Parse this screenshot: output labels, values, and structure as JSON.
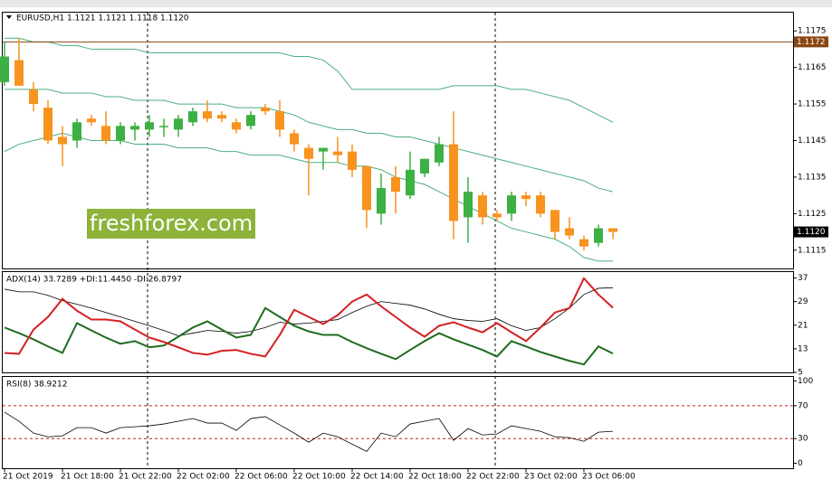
{
  "chart_data": [
    {
      "type": "candlestick",
      "title": "EURUSD,H1  1.1121 1.1121 1.1118 1.1120",
      "watermark": "freshforex.com",
      "categories": [
        "21 Oct 2019",
        null,
        null,
        null,
        "21 Oct 18:00",
        null,
        null,
        null,
        "21 Oct 22:00",
        null,
        null,
        null,
        "22 Oct 02:00",
        null,
        null,
        null,
        "22 Oct 06:00",
        null,
        null,
        null,
        "22 Oct 10:00",
        null,
        null,
        null,
        "22 Oct 14:00",
        null,
        null,
        null,
        "22 Oct 18:00",
        null,
        null,
        null,
        "22 Oct 22:00",
        null,
        null,
        null,
        "23 Oct 02:00",
        null,
        null,
        null,
        "23 Oct 06:00",
        null,
        null
      ],
      "open": [
        1.1161,
        1.1167,
        1.1159,
        1.1154,
        1.1146,
        1.1145,
        1.1151,
        1.1149,
        1.1145,
        1.1148,
        1.1148,
        1.1149,
        1.1148,
        1.115,
        1.1153,
        1.1152,
        1.115,
        1.1149,
        1.1154,
        1.1153,
        1.1147,
        1.1143,
        1.1142,
        1.1142,
        1.1142,
        1.1138,
        1.1125,
        1.1135,
        1.113,
        1.1136,
        1.1139,
        1.1144,
        1.1124,
        1.113,
        1.1125,
        1.1125,
        1.113,
        1.113,
        1.1126,
        1.1121,
        1.1118,
        1.1117,
        1.1121
      ],
      "high": [
        1.1172,
        1.1173,
        1.1161,
        1.1156,
        1.1149,
        1.1151,
        1.1152,
        1.1153,
        1.115,
        1.115,
        1.1152,
        1.1151,
        1.1152,
        1.1154,
        1.1156,
        1.1153,
        1.1151,
        1.1153,
        1.1155,
        1.1156,
        1.1148,
        1.1144,
        1.1143,
        1.1146,
        1.1144,
        1.1138,
        1.1136,
        1.1138,
        1.1142,
        1.114,
        1.1146,
        1.1153,
        1.1135,
        1.1131,
        1.1126,
        1.1131,
        1.1131,
        1.1131,
        1.1126,
        1.1124,
        1.1119,
        1.1122,
        1.1121
      ],
      "low": [
        1.116,
        1.116,
        1.1153,
        1.1144,
        1.1138,
        1.1143,
        1.1149,
        1.1144,
        1.1144,
        1.1145,
        1.1146,
        1.1146,
        1.1146,
        1.1149,
        1.115,
        1.115,
        1.1147,
        1.1148,
        1.1152,
        1.1146,
        1.1142,
        1.113,
        1.1137,
        1.1139,
        1.1135,
        1.1121,
        1.1122,
        1.1125,
        1.1129,
        1.1135,
        1.1138,
        1.1118,
        1.1117,
        1.1122,
        1.1123,
        1.1123,
        1.1127,
        1.1124,
        1.1118,
        1.1118,
        1.1115,
        1.1116,
        1.1118
      ],
      "close": [
        1.1168,
        1.116,
        1.1155,
        1.1145,
        1.1144,
        1.115,
        1.115,
        1.1145,
        1.1149,
        1.1149,
        1.115,
        1.1149,
        1.1151,
        1.1153,
        1.1151,
        1.1151,
        1.1148,
        1.1152,
        1.1153,
        1.1148,
        1.1144,
        1.114,
        1.1143,
        1.1141,
        1.1137,
        1.1126,
        1.1132,
        1.1131,
        1.1137,
        1.114,
        1.1144,
        1.1123,
        1.1131,
        1.1124,
        1.1124,
        1.113,
        1.1129,
        1.1125,
        1.112,
        1.1119,
        1.1116,
        1.1121,
        1.112
      ],
      "up_color": "#3cb043",
      "down_color": "#f7931e",
      "bands": {
        "color": "#4caf7d",
        "upper": [
          1.1173,
          1.1173,
          1.1172,
          1.1172,
          1.1171,
          1.1171,
          1.117,
          1.117,
          1.117,
          1.117,
          1.1169,
          1.1169,
          1.1169,
          1.1169,
          1.1169,
          1.1169,
          1.1169,
          1.1169,
          1.1169,
          1.1169,
          1.1168,
          1.1168,
          1.1167,
          1.1164,
          1.1159,
          1.1159,
          1.1159,
          1.1159,
          1.1159,
          1.1159,
          1.1159,
          1.116,
          1.116,
          1.116,
          1.116,
          1.1159,
          1.1159,
          1.1158,
          1.1157,
          1.1156,
          1.1154,
          1.1152,
          1.115
        ],
        "middle": [
          1.1159,
          1.1159,
          1.1159,
          1.1159,
          1.1158,
          1.1158,
          1.1158,
          1.1157,
          1.1157,
          1.1156,
          1.1156,
          1.1156,
          1.1155,
          1.1155,
          1.1155,
          1.1155,
          1.1154,
          1.1154,
          1.1154,
          1.1153,
          1.1152,
          1.115,
          1.1149,
          1.1148,
          1.1148,
          1.1147,
          1.1147,
          1.1146,
          1.1146,
          1.1145,
          1.1144,
          1.1143,
          1.1142,
          1.1141,
          1.114,
          1.1139,
          1.1138,
          1.1137,
          1.1136,
          1.1135,
          1.1134,
          1.1132,
          1.1131
        ],
        "lower": [
          1.1142,
          1.1144,
          1.1145,
          1.1146,
          1.1147,
          1.1146,
          1.1145,
          1.1145,
          1.1145,
          1.1144,
          1.1144,
          1.1144,
          1.1143,
          1.1143,
          1.1143,
          1.1142,
          1.1142,
          1.1141,
          1.1141,
          1.1141,
          1.114,
          1.1139,
          1.1139,
          1.1139,
          1.1138,
          1.1138,
          1.1137,
          1.1135,
          1.1134,
          1.1133,
          1.1131,
          1.1129,
          1.1127,
          1.1125,
          1.1123,
          1.1121,
          1.112,
          1.1119,
          1.1118,
          1.1116,
          1.1113,
          1.1112,
          1.1112
        ]
      },
      "level": {
        "value": 1.1172,
        "color": "#8b4513"
      },
      "last_price": {
        "value": 1.112,
        "label": "1.1120"
      },
      "ylim": [
        1.111,
        1.118
      ],
      "yticks": [
        1.1115,
        1.1125,
        1.1135,
        1.1145,
        1.1155,
        1.1165,
        1.1175
      ]
    },
    {
      "type": "line",
      "title": "ADX(14) 33.7289 +DI:11.4450 -DI:26.8797",
      "series": [
        {
          "color": "#000000",
          "width": 0.8,
          "values": [
            33.2,
            32.3,
            32.3,
            31.1,
            29.3,
            28.1,
            26.8,
            25.3,
            23.8,
            22.3,
            20.8,
            19.2,
            17.4,
            18.3,
            19.2,
            18.9,
            18.3,
            18.9,
            20.2,
            22.0,
            21.4,
            21.7,
            22.3,
            22.9,
            25.3,
            27.4,
            29.0,
            28.4,
            27.8,
            26.5,
            24.7,
            23.2,
            22.6,
            22.3,
            23.2,
            20.8,
            19.2,
            20.2,
            23.2,
            26.8,
            31.4,
            33.5,
            33.7
          ]
        },
        {
          "color": "#1e6b1e",
          "width": 2,
          "values": [
            20.2,
            18.3,
            16.2,
            13.8,
            11.6,
            21.7,
            19.2,
            16.8,
            14.7,
            15.6,
            13.5,
            14.1,
            17.1,
            20.2,
            22.3,
            19.5,
            16.8,
            17.7,
            26.8,
            23.8,
            20.8,
            18.9,
            17.7,
            17.7,
            15.3,
            13.2,
            11.3,
            9.5,
            12.6,
            15.6,
            18.3,
            16.2,
            14.4,
            12.6,
            10.4,
            15.6,
            13.8,
            11.9,
            10.4,
            8.9,
            7.7,
            13.8,
            11.4
          ]
        },
        {
          "color": "#d42020",
          "width": 2,
          "values": [
            11.6,
            11.3,
            19.5,
            23.8,
            29.9,
            25.9,
            22.9,
            22.9,
            22.3,
            19.5,
            16.8,
            15.3,
            13.5,
            11.6,
            11.0,
            12.3,
            12.6,
            11.3,
            10.4,
            17.7,
            26.2,
            23.8,
            21.4,
            24.4,
            29.0,
            31.4,
            27.4,
            23.8,
            20.2,
            17.1,
            20.8,
            22.0,
            20.2,
            18.6,
            21.7,
            18.6,
            15.6,
            20.2,
            25.3,
            26.8,
            36.9,
            31.4,
            26.9
          ]
        }
      ],
      "ylim": [
        5,
        39
      ],
      "yticks": [
        5,
        13,
        21,
        29,
        37
      ]
    },
    {
      "type": "line",
      "title": "RSI(8) 38.9212",
      "series": [
        {
          "color": "#000000",
          "width": 0.8,
          "values": [
            62.2,
            51.1,
            36.7,
            32.2,
            33.3,
            43.3,
            43.3,
            36.7,
            43.3,
            44.4,
            45.6,
            47.8,
            51.1,
            54.4,
            48.9,
            48.9,
            40.0,
            54.4,
            56.7,
            46.7,
            36.7,
            25.6,
            36.7,
            32.2,
            23.3,
            14.4,
            36.7,
            32.2,
            47.8,
            51.1,
            54.4,
            27.8,
            42.2,
            34.4,
            35.6,
            45.6,
            42.2,
            38.9,
            32.2,
            31.1,
            26.7,
            37.8,
            38.9
          ]
        }
      ],
      "levels": [
        70,
        30
      ],
      "level_color": "#c02020",
      "ylim": [
        -6,
        105
      ],
      "yticks": [
        0,
        30,
        70,
        100
      ]
    }
  ]
}
